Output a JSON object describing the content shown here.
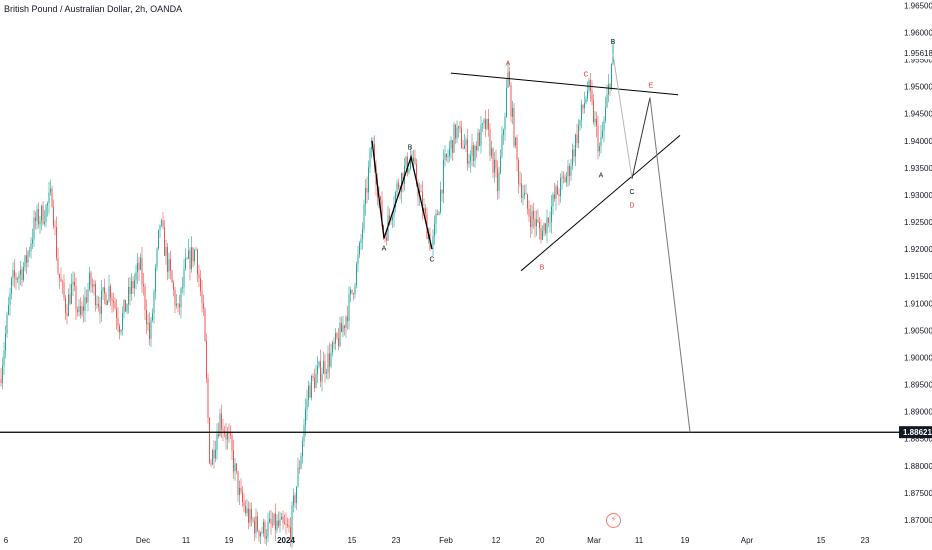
{
  "title": "British Pound / Australian Dollar, 2h, OANDA",
  "icons": {
    "events": "flash-icon"
  },
  "colors": {
    "up": "#26a69a",
    "down": "#ef5350",
    "line": "#000000",
    "projection": "#b7b7b7",
    "label_red": "#e53935"
  },
  "chart_data": {
    "type": "candlestick",
    "symbol": "GBPAUD",
    "timeframe": "2h",
    "source": "OANDA",
    "y_range": [
      1.8663,
      1.966
    ],
    "y_ticks": [
      "1.96500",
      "1.96000",
      "1.95500",
      "1.95000",
      "1.94500",
      "1.94000",
      "1.93500",
      "1.93000",
      "1.92500",
      "1.92000",
      "1.91500",
      "1.91000",
      "1.90500",
      "1.90000",
      "1.89500",
      "1.89000",
      "1.88500",
      "1.88000",
      "1.87500",
      "1.87000"
    ],
    "x_ticks": [
      "6",
      "20",
      "Dec",
      "11",
      "19",
      "2024",
      "15",
      "23",
      "Feb",
      "12",
      "20",
      "Mar",
      "11",
      "19",
      "Apr",
      "15",
      "23"
    ],
    "price_path": [
      {
        "t": 0,
        "p": 1.896
      },
      {
        "t": 12,
        "p": 1.914
      },
      {
        "t": 25,
        "p": 1.917
      },
      {
        "t": 35,
        "p": 1.925
      },
      {
        "t": 45,
        "p": 1.927
      },
      {
        "t": 52,
        "p": 1.93
      },
      {
        "t": 58,
        "p": 1.916
      },
      {
        "t": 66,
        "p": 1.909
      },
      {
        "t": 72,
        "p": 1.913
      },
      {
        "t": 80,
        "p": 1.907
      },
      {
        "t": 90,
        "p": 1.914
      },
      {
        "t": 100,
        "p": 1.91
      },
      {
        "t": 110,
        "p": 1.913
      },
      {
        "t": 120,
        "p": 1.906
      },
      {
        "t": 130,
        "p": 1.912
      },
      {
        "t": 140,
        "p": 1.917
      },
      {
        "t": 150,
        "p": 1.903
      },
      {
        "t": 160,
        "p": 1.925
      },
      {
        "t": 168,
        "p": 1.917
      },
      {
        "t": 178,
        "p": 1.908
      },
      {
        "t": 186,
        "p": 1.917
      },
      {
        "t": 196,
        "p": 1.92
      },
      {
        "t": 204,
        "p": 1.906
      },
      {
        "t": 210,
        "p": 1.88
      },
      {
        "t": 220,
        "p": 1.889
      },
      {
        "t": 230,
        "p": 1.884
      },
      {
        "t": 240,
        "p": 1.874
      },
      {
        "t": 250,
        "p": 1.87
      },
      {
        "t": 262,
        "p": 1.868
      },
      {
        "t": 275,
        "p": 1.869
      },
      {
        "t": 290,
        "p": 1.868
      },
      {
        "t": 300,
        "p": 1.881
      },
      {
        "t": 308,
        "p": 1.894
      },
      {
        "t": 318,
        "p": 1.897
      },
      {
        "t": 330,
        "p": 1.9
      },
      {
        "t": 342,
        "p": 1.905
      },
      {
        "t": 352,
        "p": 1.912
      },
      {
        "t": 360,
        "p": 1.92
      },
      {
        "t": 366,
        "p": 1.93
      },
      {
        "t": 372,
        "p": 1.94
      },
      {
        "t": 384,
        "p": 1.922
      },
      {
        "t": 398,
        "p": 1.932
      },
      {
        "t": 411,
        "p": 1.937
      },
      {
        "t": 432,
        "p": 1.92
      },
      {
        "t": 444,
        "p": 1.935
      },
      {
        "t": 456,
        "p": 1.942
      },
      {
        "t": 470,
        "p": 1.937
      },
      {
        "t": 486,
        "p": 1.943
      },
      {
        "t": 498,
        "p": 1.931
      },
      {
        "t": 508,
        "p": 1.952
      },
      {
        "t": 518,
        "p": 1.934
      },
      {
        "t": 528,
        "p": 1.927
      },
      {
        "t": 542,
        "p": 1.923
      },
      {
        "t": 556,
        "p": 1.93
      },
      {
        "t": 568,
        "p": 1.934
      },
      {
        "t": 578,
        "p": 1.942
      },
      {
        "t": 588,
        "p": 1.95
      },
      {
        "t": 600,
        "p": 1.938
      },
      {
        "t": 606,
        "p": 1.946
      },
      {
        "t": 613,
        "p": 1.956
      }
    ],
    "projection_path": [
      {
        "t": 613,
        "p": 1.956
      },
      {
        "t": 632,
        "p": 1.933
      },
      {
        "t": 650,
        "p": 1.948
      },
      {
        "t": 690,
        "p": 1.8862
      }
    ],
    "abc_path": [
      {
        "t": 372,
        "p": 1.94
      },
      {
        "t": 384,
        "p": 1.922
      },
      {
        "t": 411,
        "p": 1.937
      },
      {
        "t": 432,
        "p": 1.92
      }
    ],
    "trendlines": [
      {
        "name": "upper",
        "from": {
          "t": 451,
          "p": 1.9525
        },
        "to": {
          "t": 678,
          "p": 1.9485
        }
      },
      {
        "name": "lower",
        "from": {
          "t": 521,
          "p": 1.916
        },
        "to": {
          "t": 680,
          "p": 1.941
        }
      },
      {
        "name": "horizontal",
        "from": {
          "t": 0,
          "p": 1.8862
        },
        "to": {
          "t": 900,
          "p": 1.8862
        }
      }
    ],
    "wave_labels": [
      {
        "text": "A",
        "t": 384,
        "p": 1.921,
        "color": "black",
        "pos": "below"
      },
      {
        "text": "B",
        "t": 410,
        "p": 1.938,
        "color": "black",
        "pos": "above"
      },
      {
        "text": "C",
        "t": 432,
        "p": 1.919,
        "color": "black",
        "pos": "below"
      },
      {
        "text": "A",
        "t": 508,
        "p": 1.9535,
        "color": "red",
        "pos": "above"
      },
      {
        "text": "B",
        "t": 542,
        "p": 1.9175,
        "color": "red",
        "pos": "below"
      },
      {
        "text": "C",
        "t": 586,
        "p": 1.9515,
        "color": "red",
        "pos": "above"
      },
      {
        "text": "D",
        "t": 632,
        "p": 1.929,
        "color": "red",
        "pos": "below"
      },
      {
        "text": "E",
        "t": 651,
        "p": 1.9495,
        "color": "red",
        "pos": "above"
      },
      {
        "text": "B",
        "t": 613,
        "p": 1.9575,
        "color": "black",
        "pos": "above"
      },
      {
        "text": "A",
        "t": 601,
        "p": 1.9345,
        "color": "black",
        "pos": "below"
      },
      {
        "text": "C",
        "t": 632,
        "p": 1.9315,
        "color": "black",
        "pos": "below"
      }
    ],
    "highlight_levels": [
      {
        "label": "1.88621",
        "value": 1.88621,
        "style": "dark"
      },
      {
        "label": "1.95618",
        "value": 1.95618,
        "style": "plain"
      }
    ]
  }
}
